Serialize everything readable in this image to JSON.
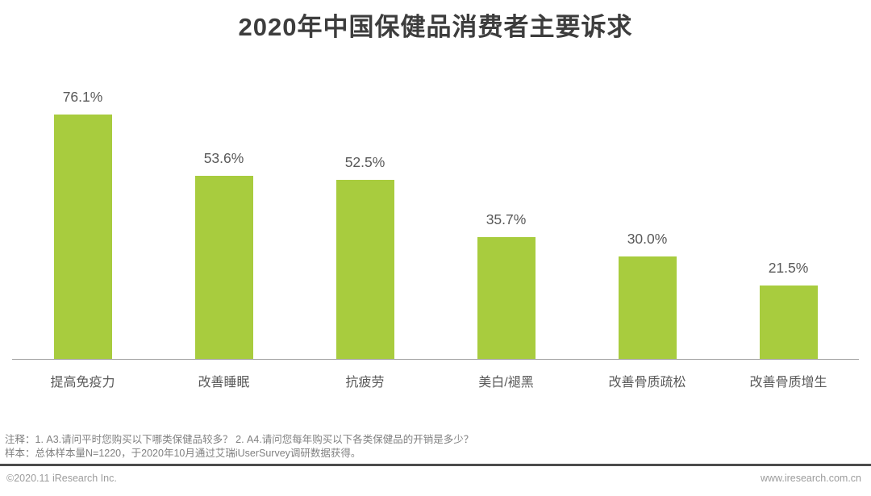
{
  "chart_data": {
    "type": "bar",
    "title": "2020年中国保健品消费者主要诉求",
    "categories": [
      "提高免疫力",
      "改善睡眠",
      "抗疲劳",
      "美白/褪黑",
      "改善骨质疏松",
      "改善骨质增生"
    ],
    "values": [
      76.1,
      53.6,
      52.5,
      35.7,
      30.0,
      21.5
    ],
    "value_labels": [
      "76.1%",
      "53.6%",
      "52.5%",
      "35.7%",
      "30.0%",
      "21.5%"
    ],
    "xlabel": "",
    "ylabel": "",
    "ylim": [
      0,
      80
    ],
    "grid": false,
    "legend_position": "none",
    "bar_color": "#a8cc3e"
  },
  "colors": {
    "title": "#3d3d3d",
    "value_label": "#595959",
    "category_label": "#595959",
    "axis_line": "#9f9f9f",
    "note_text": "#818181",
    "footer_divider": "#4c4c4c",
    "footer_text": "#9c9c9c"
  },
  "notes": {
    "line1": "注释：1. A3.请问平时您购买以下哪类保健品较多？ 2. A4.请问您每年购买以下各类保健品的开销是多少？",
    "line2": "样本：总体样本量N=1220，于2020年10月通过艾瑞iUserSurvey调研数据获得。"
  },
  "footer": {
    "copyright": "©2020.11 iResearch Inc.",
    "website": "www.iresearch.com.cn"
  }
}
